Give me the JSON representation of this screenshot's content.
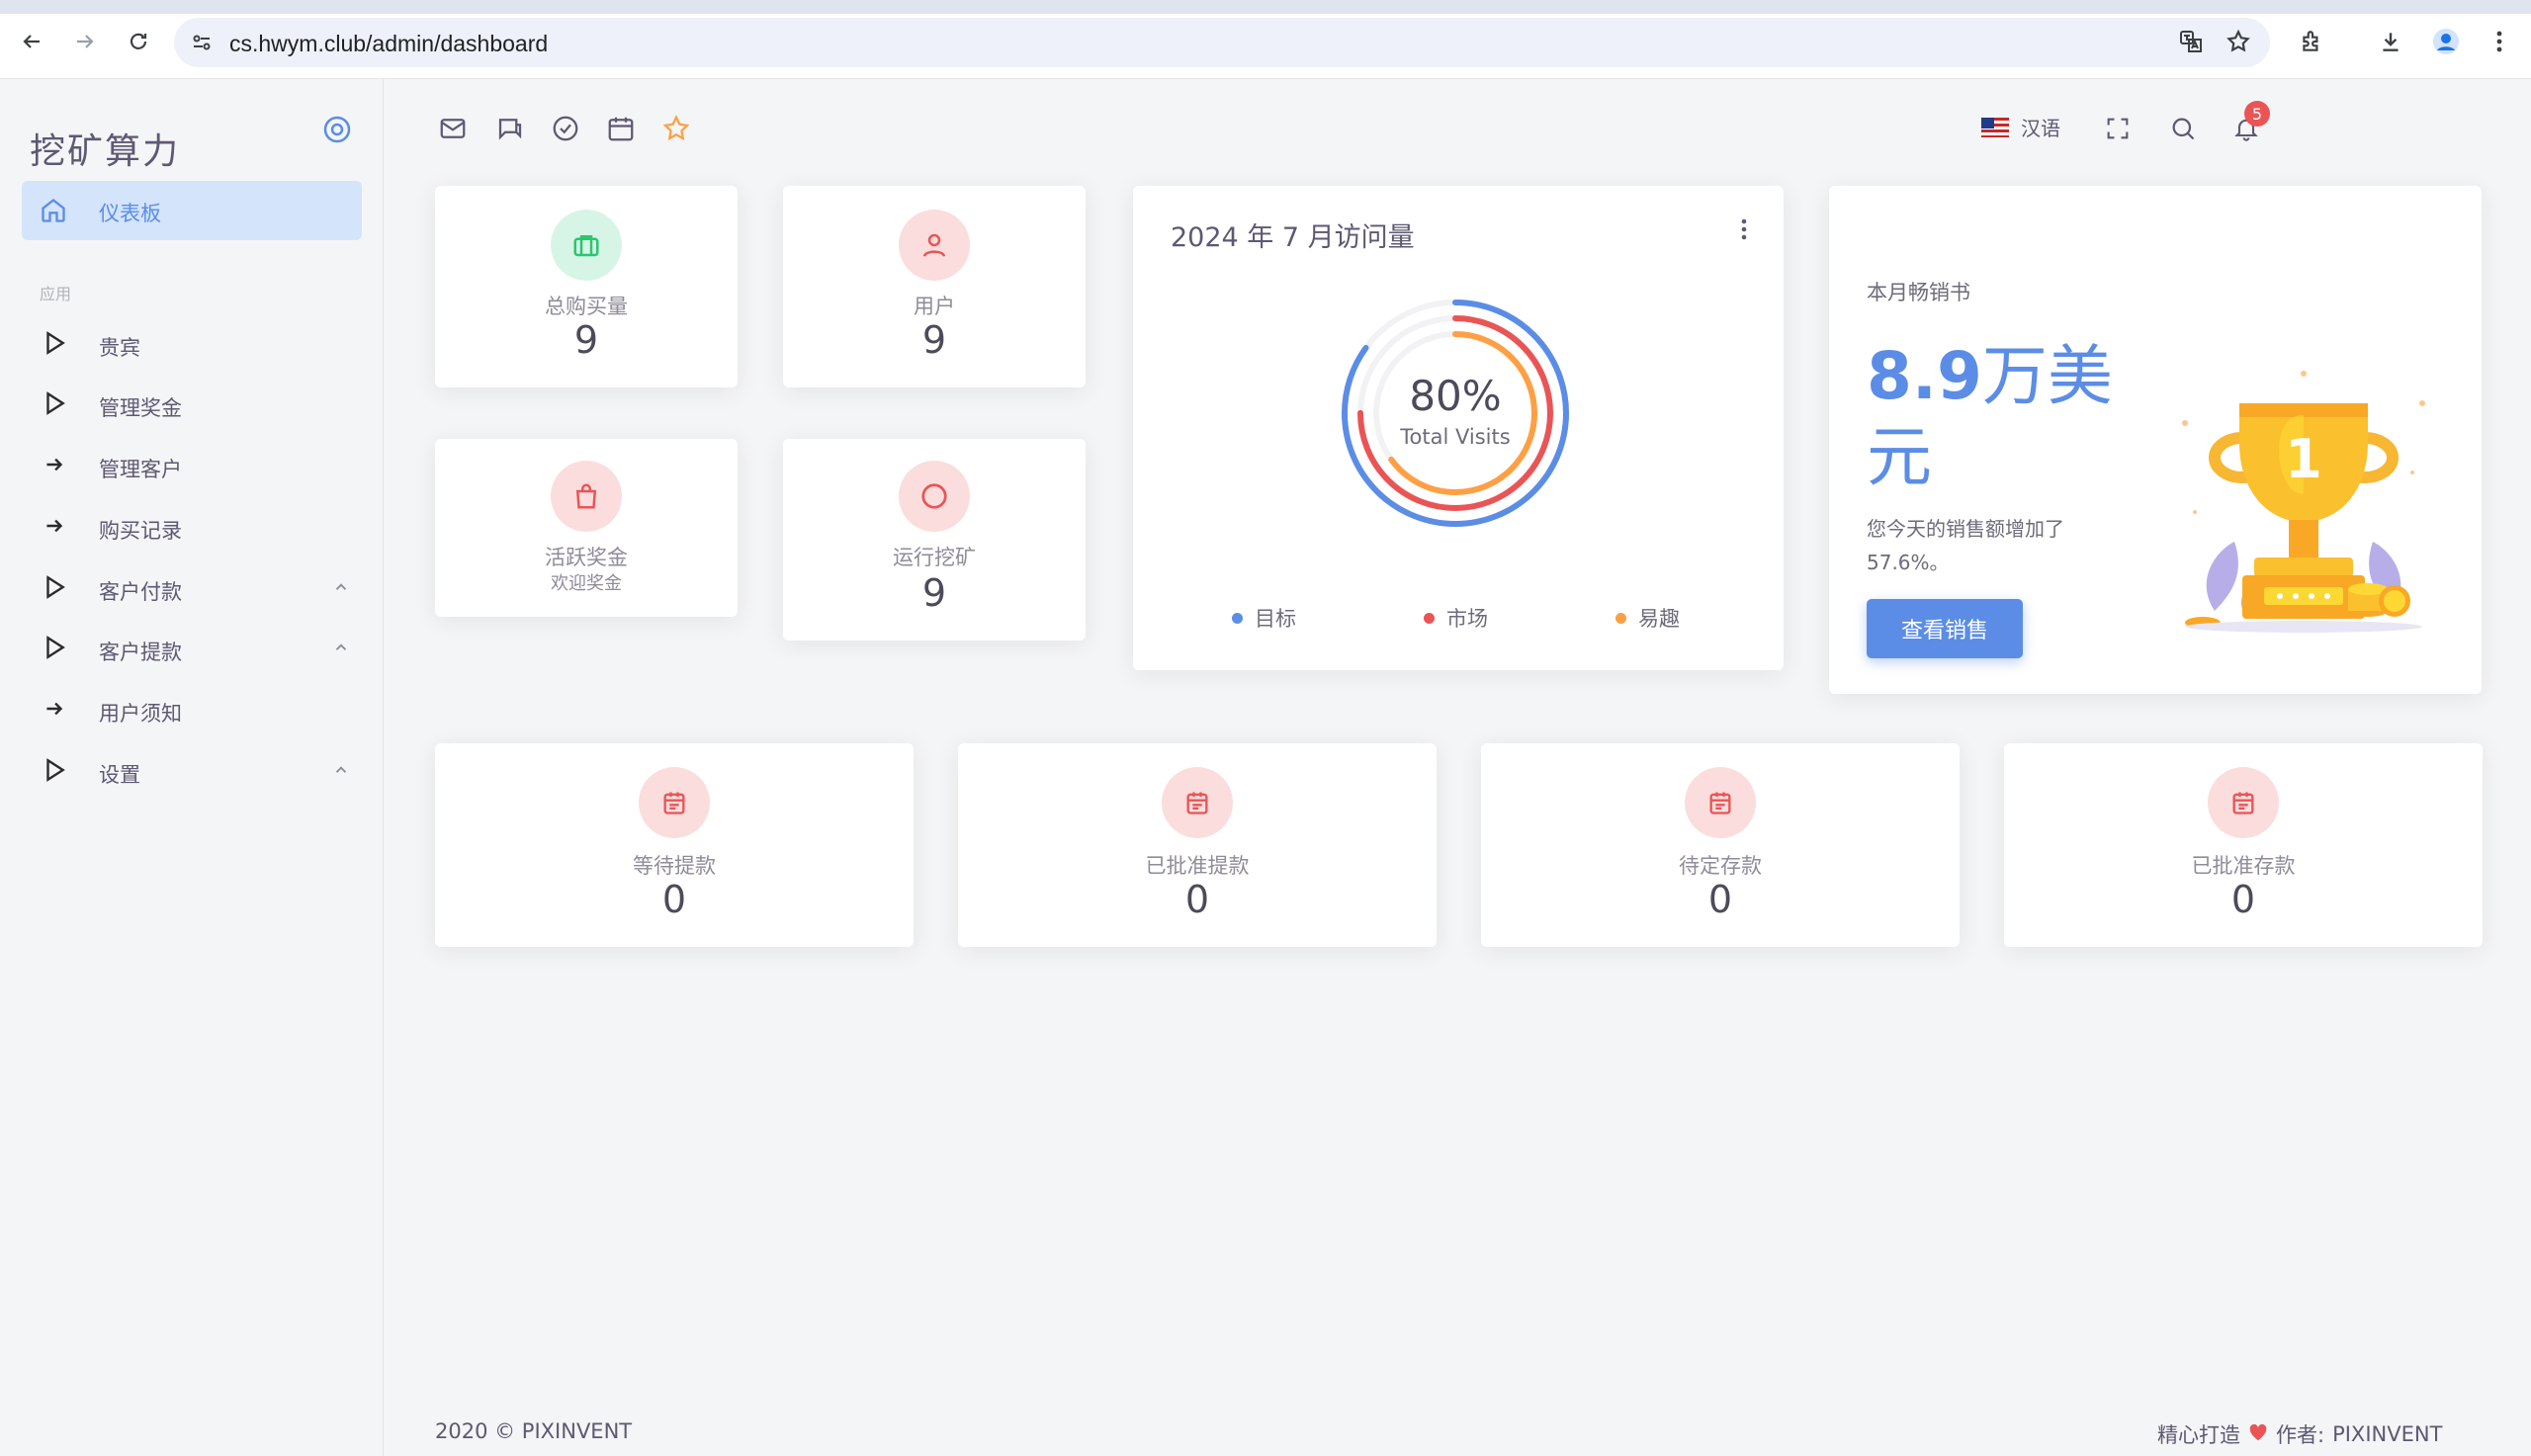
{
  "browser": {
    "url": "cs.hwym.club/admin/dashboard"
  },
  "sidebar": {
    "brand": "挖矿算力",
    "active_item": "仪表板",
    "section_header": "应用",
    "items": [
      {
        "label": "贵宾",
        "icon": "triangle-play-icon",
        "has_chevron": false
      },
      {
        "label": "管理奖金",
        "icon": "triangle-play-icon",
        "has_chevron": false
      },
      {
        "label": "管理客户",
        "icon": "arrow-right-icon",
        "has_chevron": false
      },
      {
        "label": "购买记录",
        "icon": "arrow-right-icon",
        "has_chevron": false
      },
      {
        "label": "客户付款",
        "icon": "triangle-play-icon",
        "has_chevron": true
      },
      {
        "label": "客户提款",
        "icon": "triangle-play-icon",
        "has_chevron": true
      },
      {
        "label": "用户须知",
        "icon": "arrow-right-icon",
        "has_chevron": false
      },
      {
        "label": "设置",
        "icon": "triangle-play-icon",
        "has_chevron": true
      }
    ]
  },
  "topbar": {
    "language": "汉语",
    "notification_count": "5"
  },
  "stats": {
    "purchases": {
      "label": "总购买量",
      "value": "9"
    },
    "users": {
      "label": "用户",
      "value": "9"
    },
    "active_bonus": {
      "label": "活跃奖金",
      "sub": "欢迎奖金"
    },
    "running_mining": {
      "label": "运行挖矿",
      "value": "9"
    }
  },
  "visits": {
    "title": "2024 年 7 月访问量",
    "percent": "80%",
    "subtitle": "Total Visits",
    "legend": [
      {
        "label": "目标",
        "color": "#5b8de6"
      },
      {
        "label": "市场",
        "color": "#ea5455"
      },
      {
        "label": "易趣",
        "color": "#ff9f43"
      }
    ],
    "rings": [
      0.85,
      0.75,
      0.65
    ]
  },
  "sales": {
    "label": "本月畅销书",
    "amount_number": "8.9",
    "amount_unit": "万美元",
    "description": "您今天的销售额增加了 57.6%。",
    "button": "查看销售"
  },
  "withdrawals": [
    {
      "label": "等待提款",
      "value": "0"
    },
    {
      "label": "已批准提款",
      "value": "0"
    },
    {
      "label": "待定存款",
      "value": "0"
    },
    {
      "label": "已批准存款",
      "value": "0"
    }
  ],
  "footer": {
    "copyright": "2020 © PIXINVENT",
    "made_with": "精心打造",
    "author_label": "作者:",
    "author": "PIXINVENT"
  },
  "colors": {
    "primary": "#5b8de6",
    "success": "#28c76f",
    "danger": "#ea5455",
    "warning": "#ff9f43"
  }
}
